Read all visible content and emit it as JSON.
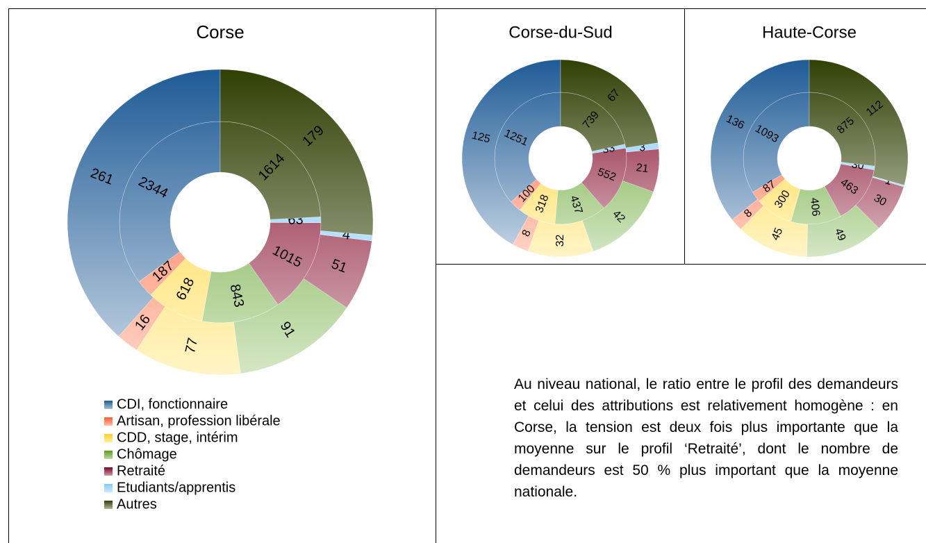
{
  "legend": {
    "categories": [
      "CDI, fonctionnaire",
      "Artisan, profession libérale",
      "CDD, stage, intérim",
      "Chômage",
      "Retraité",
      "Etudiants/apprentis",
      "Autres"
    ],
    "colors": [
      "#1f5b96",
      "#ff5a2b",
      "#ffd320",
      "#579d1c",
      "#7e0021",
      "#83caff",
      "#314004"
    ]
  },
  "chart_data": [
    {
      "type": "donut",
      "title": "Corse",
      "rings": [
        [
          2344,
          187,
          618,
          843,
          1015,
          63,
          1614
        ],
        [
          261,
          16,
          77,
          91,
          51,
          4,
          179
        ]
      ]
    },
    {
      "type": "donut",
      "title": "Corse-du-Sud",
      "rings": [
        [
          1251,
          100,
          318,
          437,
          552,
          33,
          739
        ],
        [
          125,
          8,
          32,
          42,
          21,
          3,
          67
        ]
      ]
    },
    {
      "type": "donut",
      "title": "Haute-Corse",
      "rings": [
        [
          1093,
          87,
          300,
          406,
          463,
          30,
          875
        ],
        [
          136,
          8,
          45,
          49,
          30,
          1,
          112
        ]
      ]
    }
  ],
  "text": "Au niveau national, le ratio entre le profil des demandeurs et celui des attributions est relativement homogène : en Corse, la tension est deux fois plus importante que la moyenne sur le profil ‘Retraité’, dont le nombre de demandeurs est 50 % plus important que la moyenne nationale."
}
